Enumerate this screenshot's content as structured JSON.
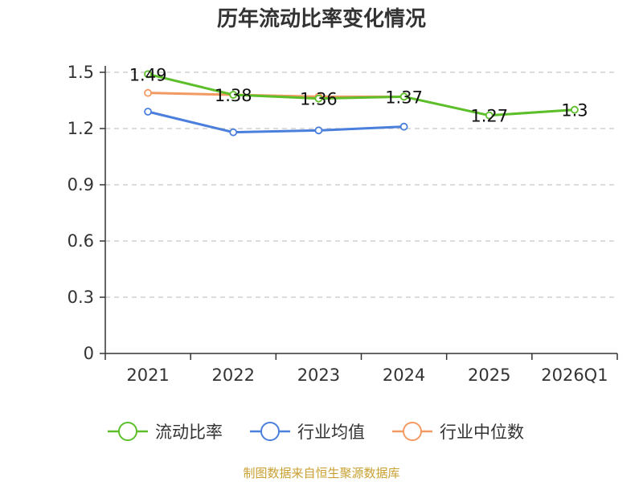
{
  "chart_data": {
    "type": "line",
    "title": "历年流动比率变化情况",
    "categories": [
      "2021",
      "2022",
      "2023",
      "2024",
      "2025",
      "2026Q1"
    ],
    "ylim": [
      0,
      1.5
    ],
    "yticks": [
      0,
      0.3,
      0.6,
      0.9,
      1.2,
      1.5
    ],
    "ytick_labels": [
      "0",
      "0.3",
      "0.6",
      "0.9",
      "1.2",
      "1.5"
    ],
    "grid": true,
    "legend_position": "bottom",
    "series": [
      {
        "name": "流动比率",
        "color": "#5cbf2a",
        "values": [
          1.49,
          1.38,
          1.36,
          1.37,
          1.27,
          1.3
        ],
        "labels": [
          "1.49",
          "1.38",
          "1.36",
          "1.37",
          "1.27",
          "1.3"
        ]
      },
      {
        "name": "行业均值",
        "color": "#4a7fdc",
        "values": [
          1.29,
          1.18,
          1.19,
          1.21,
          null,
          null
        ]
      },
      {
        "name": "行业中位数",
        "color": "#f39a63",
        "values": [
          1.39,
          1.38,
          1.37,
          1.37,
          null,
          null
        ]
      }
    ]
  },
  "footer": {
    "source": "制图数据来自恒生聚源数据库"
  }
}
